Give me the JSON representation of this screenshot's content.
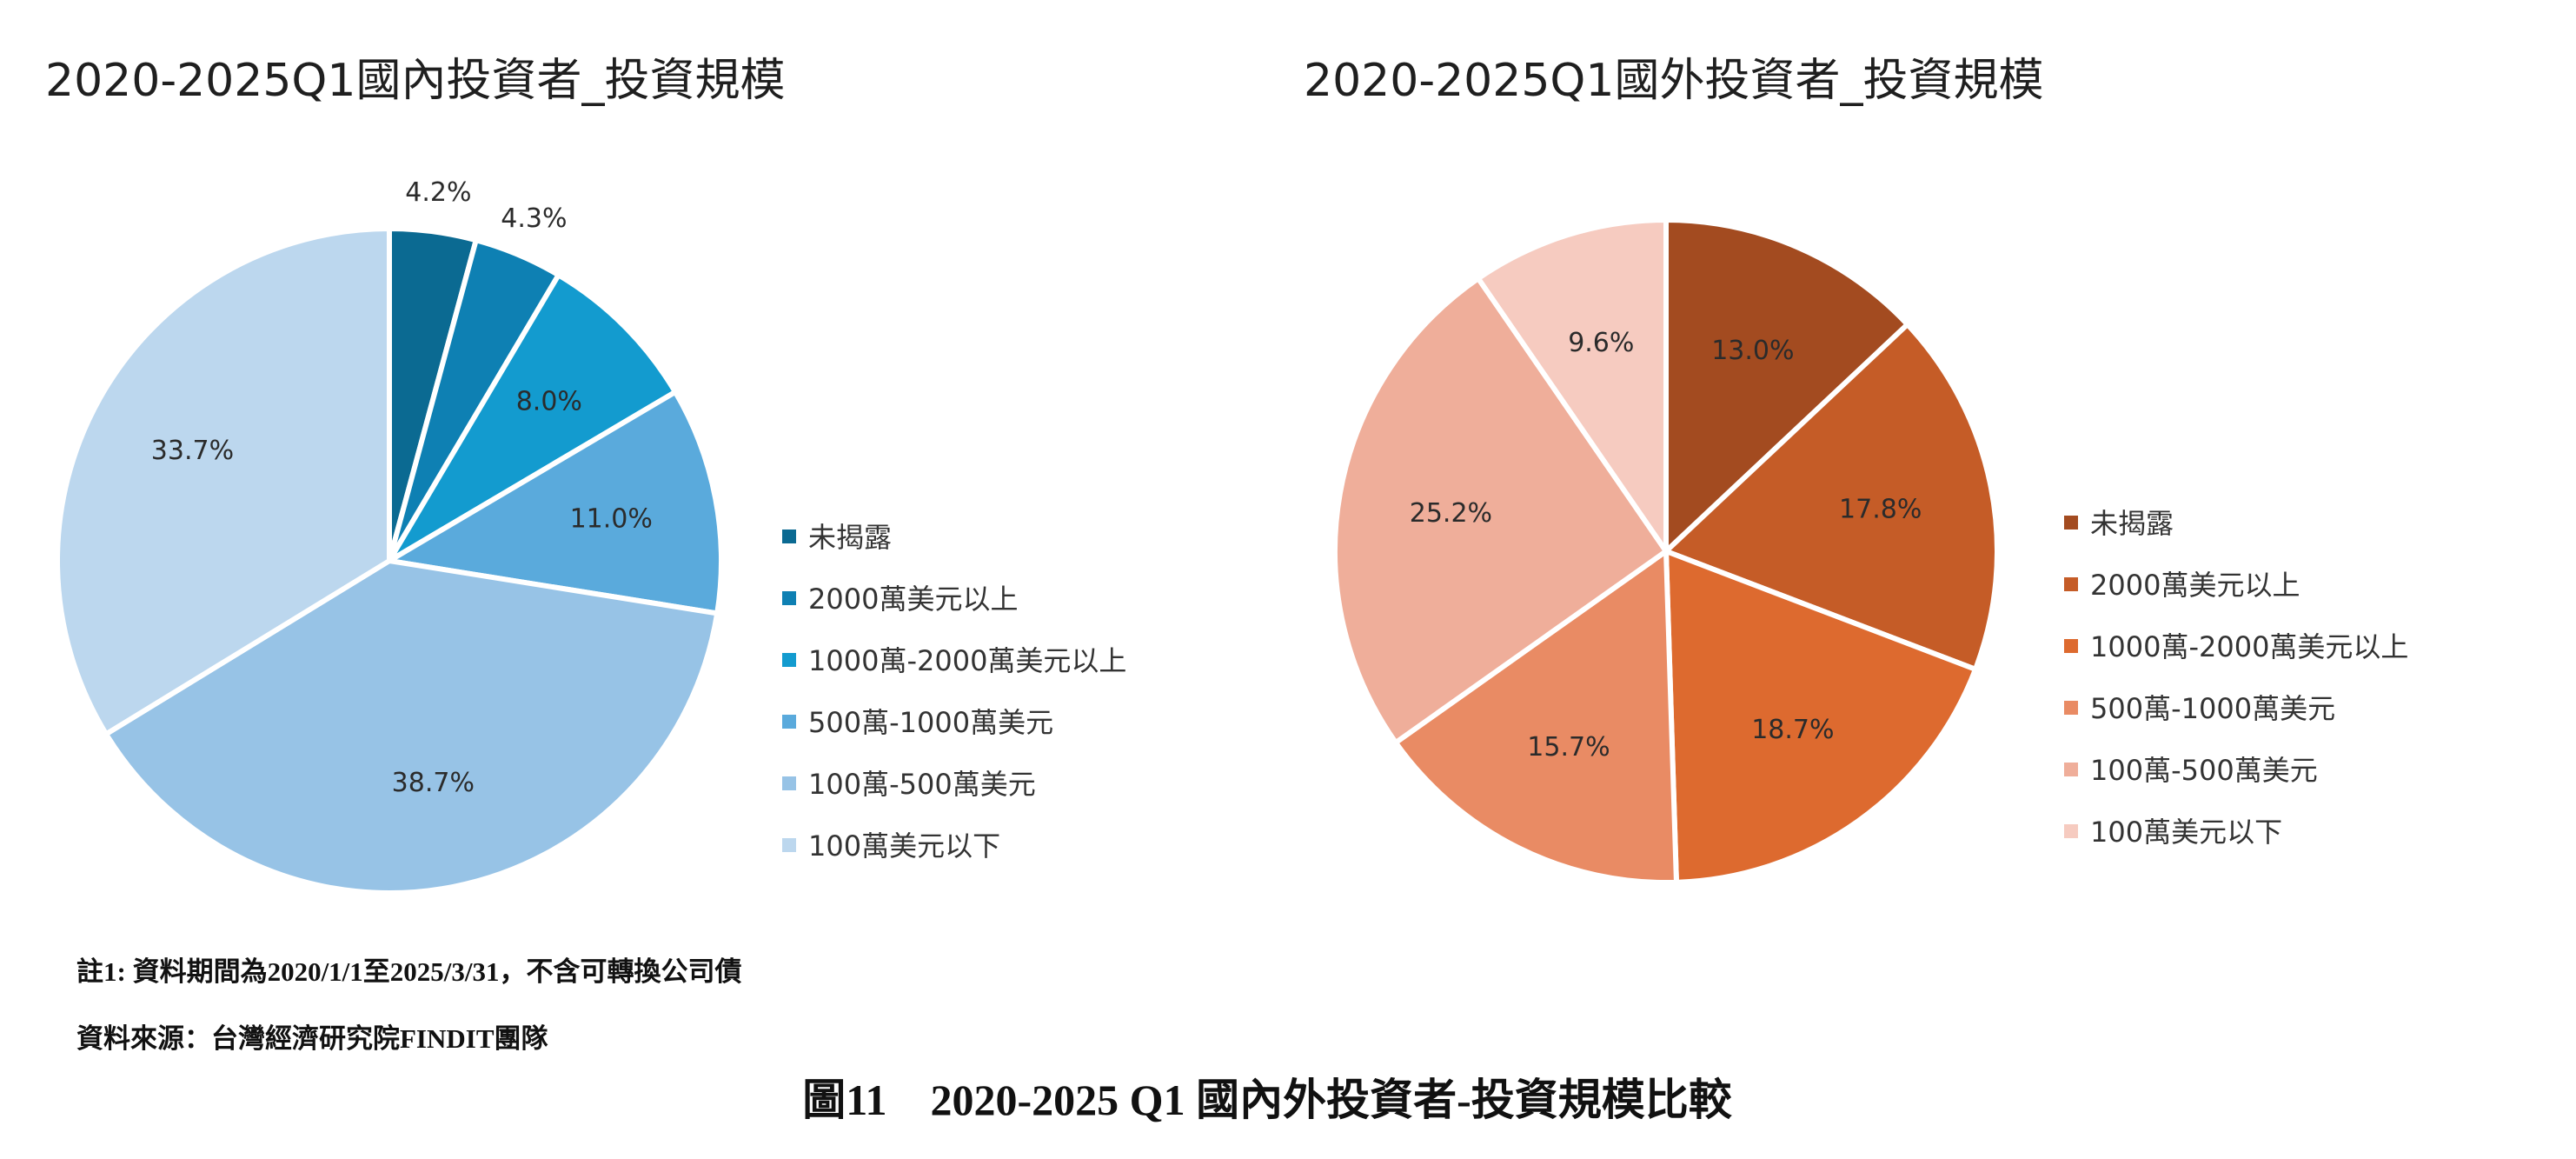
{
  "chart_data": [
    {
      "type": "pie",
      "title": "2020-2025Q1國內投資者_投資規模",
      "categories": [
        "未揭露",
        "2000萬美元以上",
        "1000萬-2000萬美元以上",
        "500萬-1000萬美元",
        "100萬-500萬美元",
        "100萬美元以下"
      ],
      "values": [
        4.2,
        4.3,
        8.0,
        11.0,
        38.7,
        33.7
      ],
      "labels": [
        "4.2%",
        "4.3%",
        "8.0%",
        "11.0%",
        "38.7%",
        "33.7%"
      ],
      "colors": [
        "#0b6a92",
        "#0e80b3",
        "#139bcf",
        "#5aaadc",
        "#97c3e6",
        "#bcd7ee"
      ],
      "start": "12 o'clock, clockwise",
      "legend": "right"
    },
    {
      "type": "pie",
      "title": "2020-2025Q1國外投資者_投資規模",
      "categories": [
        "未揭露",
        "2000萬美元以上",
        "1000萬-2000萬美元以上",
        "500萬-1000萬美元",
        "100萬-500萬美元",
        "100萬美元以下"
      ],
      "values": [
        13.0,
        17.8,
        18.7,
        15.7,
        25.2,
        9.6
      ],
      "labels": [
        "13.0%",
        "17.8%",
        "18.7%",
        "15.7%",
        "25.2%",
        "9.6%"
      ],
      "colors": [
        "#a34b20",
        "#c55c27",
        "#dd6a2f",
        "#e98b64",
        "#efae9a",
        "#f6cbc0"
      ],
      "start": "12 o'clock, clockwise",
      "legend": "right"
    }
  ],
  "notes": {
    "note1": "註1: 資料期間為2020/1/1至2025/3/31，不含可轉換公司債",
    "source": "資料來源：台灣經濟研究院FINDIT團隊"
  },
  "caption": "圖11　2020-2025 Q1  國內外投資者-投資規模比較"
}
